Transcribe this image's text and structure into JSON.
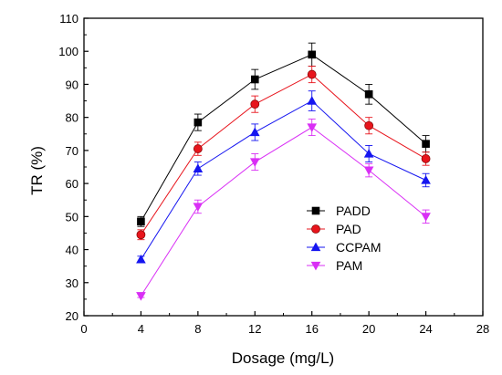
{
  "chart_data": {
    "type": "line",
    "title": "",
    "xlabel": "Dosage (mg/L)",
    "ylabel": "TR (%)",
    "xlim": [
      0,
      28
    ],
    "ylim": [
      20,
      110
    ],
    "xticks": [
      0,
      4,
      8,
      12,
      16,
      20,
      24,
      28
    ],
    "yticks": [
      20,
      30,
      40,
      50,
      60,
      70,
      80,
      90,
      100,
      110
    ],
    "grid": false,
    "legend_position": "center-right",
    "x": [
      4,
      8,
      12,
      16,
      20,
      24
    ],
    "series": [
      {
        "name": "PADD",
        "values": [
          48.5,
          78.5,
          91.5,
          99,
          87,
          72
        ],
        "errors": [
          1.5,
          2.5,
          3,
          3.5,
          3,
          2.5
        ],
        "color": "#000000",
        "marker": "square"
      },
      {
        "name": "PAD",
        "values": [
          44.5,
          70.5,
          84,
          93,
          77.5,
          67.5
        ],
        "errors": [
          1.5,
          2,
          2.5,
          2.5,
          2.5,
          2
        ],
        "color": "#e8141c",
        "marker": "circle"
      },
      {
        "name": "CCPAM",
        "values": [
          37,
          64.5,
          75.5,
          85,
          69,
          61
        ],
        "errors": [
          1,
          2,
          2.5,
          3,
          2.5,
          2
        ],
        "color": "#1515f0",
        "marker": "triangle-up"
      },
      {
        "name": "PAM",
        "values": [
          26,
          53,
          66.5,
          77,
          64,
          50
        ],
        "errors": [
          0.5,
          2,
          2.5,
          2.5,
          2,
          2
        ],
        "color": "#d92ff5",
        "marker": "triangle-down"
      }
    ]
  }
}
